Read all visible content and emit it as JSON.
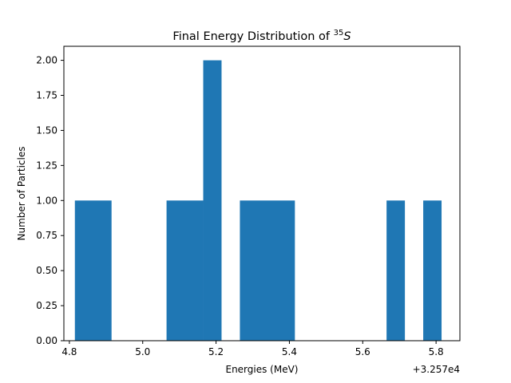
{
  "chart_data": {
    "type": "bar",
    "title_main": "Final Energy Distribution of ",
    "title_sup": "35",
    "title_sym": "S",
    "xlabel": "Energies (MeV)",
    "ylabel": "Number of Particles",
    "offset_label": "+3.257e4",
    "xlim": [
      4.785,
      5.865
    ],
    "ylim": [
      0,
      2.1
    ],
    "xticks": [
      4.8,
      5.0,
      5.2,
      5.4,
      5.6,
      5.8
    ],
    "xtick_labels": [
      "4.8",
      "5.0",
      "5.2",
      "5.4",
      "5.6",
      "5.8"
    ],
    "yticks": [
      0,
      0.25,
      0.5,
      0.75,
      1.0,
      1.25,
      1.5,
      1.75,
      2.0
    ],
    "ytick_labels": [
      "0.00",
      "0.25",
      "0.50",
      "0.75",
      "1.00",
      "1.25",
      "1.50",
      "1.75",
      "2.00"
    ],
    "bins": [
      {
        "x0": 4.815,
        "x1": 4.915,
        "count": 1
      },
      {
        "x0": 5.065,
        "x1": 5.165,
        "count": 1
      },
      {
        "x0": 5.165,
        "x1": 5.215,
        "count": 2
      },
      {
        "x0": 5.265,
        "x1": 5.415,
        "count": 1
      },
      {
        "x0": 5.665,
        "x1": 5.715,
        "count": 1
      },
      {
        "x0": 5.765,
        "x1": 5.815,
        "count": 1
      }
    ],
    "bar_color": "#1f77b4",
    "grid": false,
    "legend": "none"
  }
}
